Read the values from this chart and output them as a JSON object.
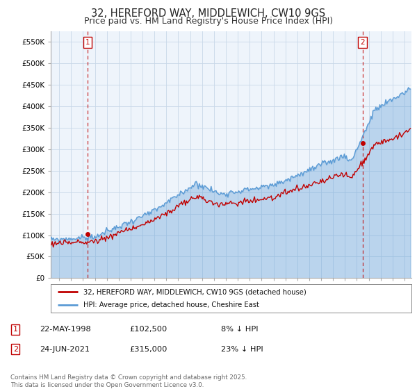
{
  "title": "32, HEREFORD WAY, MIDDLEWICH, CW10 9GS",
  "subtitle": "Price paid vs. HM Land Registry's House Price Index (HPI)",
  "ylim": [
    0,
    575000
  ],
  "yticks": [
    0,
    50000,
    100000,
    150000,
    200000,
    250000,
    300000,
    350000,
    400000,
    450000,
    500000,
    550000
  ],
  "xlim_start": 1995.3,
  "xlim_end": 2025.6,
  "hpi_color": "#5b9bd5",
  "hpi_fill_color": "#dce9f5",
  "price_color": "#c00000",
  "vline_color": "#c00000",
  "sale1_year": 1998.38,
  "sale1_price": 102500,
  "sale2_year": 2021.48,
  "sale2_price": 315000,
  "legend1": "32, HEREFORD WAY, MIDDLEWICH, CW10 9GS (detached house)",
  "legend2": "HPI: Average price, detached house, Cheshire East",
  "note1_date": "22-MAY-1998",
  "note1_price": "£102,500",
  "note1_pct": "8% ↓ HPI",
  "note2_date": "24-JUN-2021",
  "note2_price": "£315,000",
  "note2_pct": "23% ↓ HPI",
  "footer": "Contains HM Land Registry data © Crown copyright and database right 2025.\nThis data is licensed under the Open Government Licence v3.0.",
  "bg_color": "#ffffff",
  "plot_bg_color": "#eef4fb",
  "grid_color": "#c8d8e8",
  "title_fontsize": 10.5,
  "subtitle_fontsize": 9,
  "tick_fontsize": 7.5
}
